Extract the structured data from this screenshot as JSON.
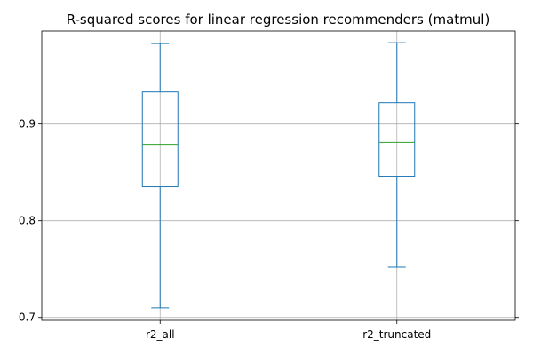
{
  "chart_data": {
    "type": "box",
    "title": "R-squared scores for linear regression recommenders (matmul)",
    "xlabel": "",
    "ylabel": "",
    "categories": [
      "r2_all",
      "r2_truncated"
    ],
    "boxes": [
      {
        "name": "r2_all",
        "whisker_low": 0.71,
        "q1": 0.835,
        "median": 0.879,
        "q3": 0.933,
        "whisker_high": 0.983
      },
      {
        "name": "r2_truncated",
        "whisker_low": 0.752,
        "q1": 0.846,
        "median": 0.881,
        "q3": 0.922,
        "whisker_high": 0.984
      }
    ],
    "ylim": [
      0.697,
      0.996
    ],
    "yticks": [
      0.7,
      0.8,
      0.9
    ],
    "ytick_labels": [
      "0.7",
      "0.8",
      "0.9"
    ],
    "grid": true,
    "ticks_on_right": true,
    "colors": {
      "box": "#1f77b4",
      "median": "#2ca02c",
      "grid": "#b0b0b0"
    }
  }
}
